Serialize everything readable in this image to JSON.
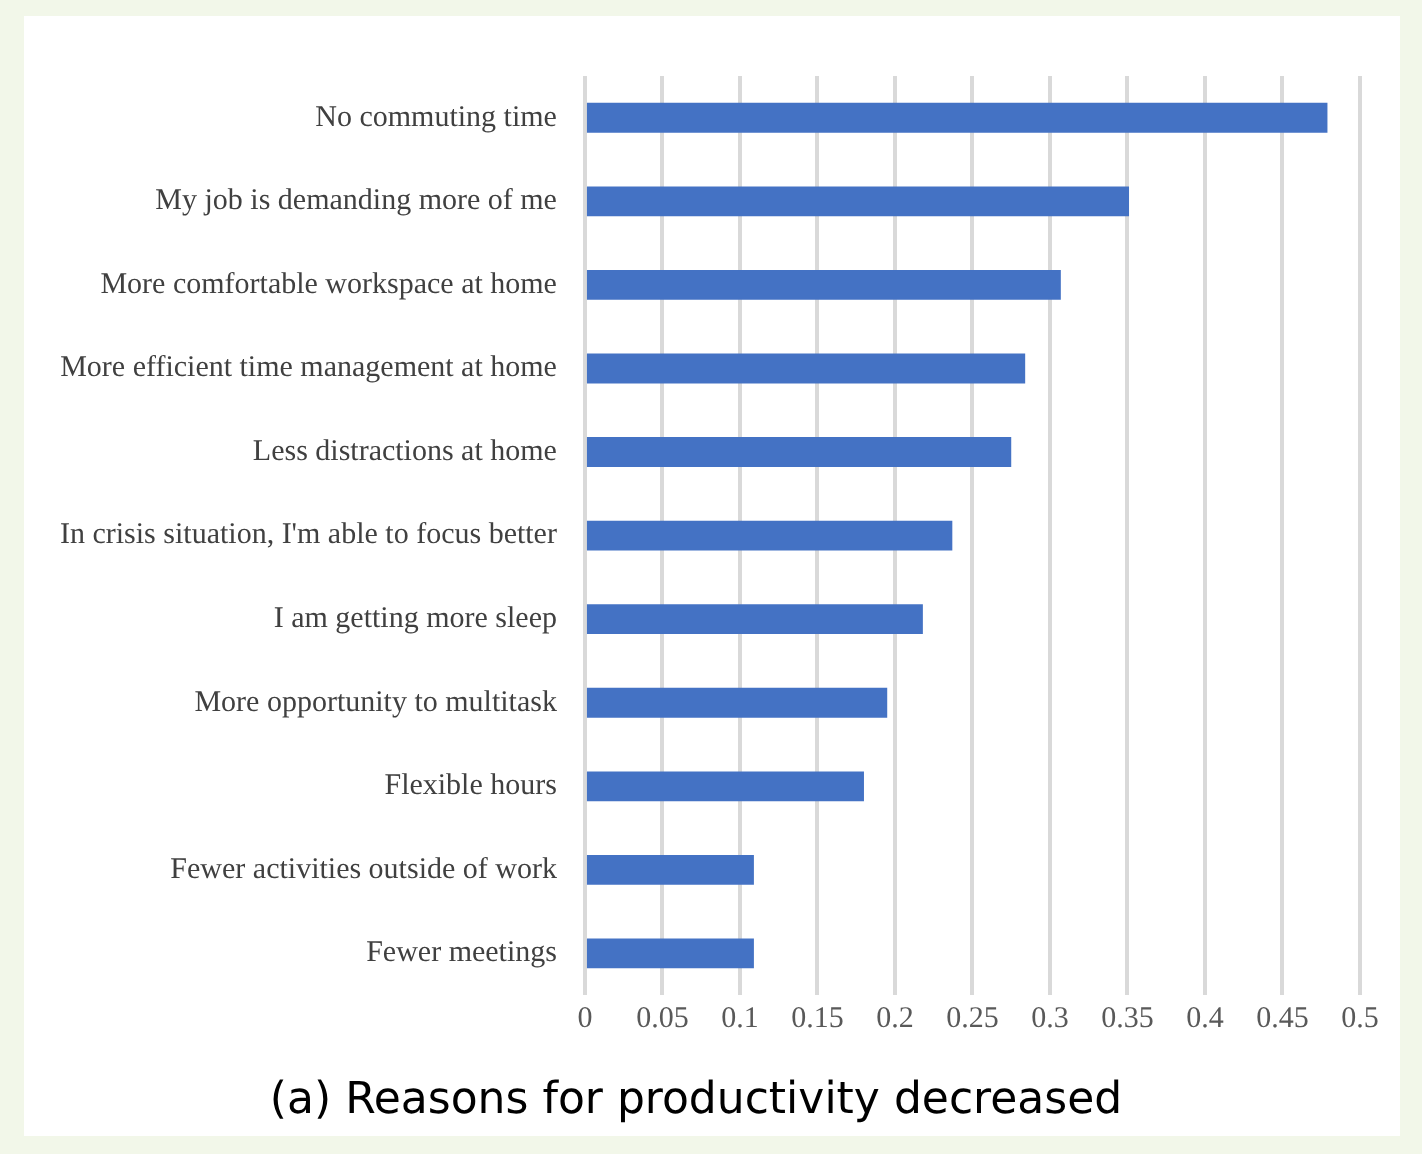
{
  "chart_data": {
    "type": "bar",
    "orientation": "horizontal",
    "title": "(a) Reasons for productivity decreased",
    "categories": [
      "No commuting time",
      "My job is demanding more of me",
      "More comfortable workspace at home",
      "More efficient time management at home",
      "Less distractions at home",
      "In crisis situation, I'm able to focus better",
      "I am getting more sleep",
      "More opportunity to multitask",
      "Flexible hours",
      "Fewer activities outside of work",
      "Fewer meetings"
    ],
    "values": [
      0.479,
      0.351,
      0.307,
      0.284,
      0.275,
      0.237,
      0.218,
      0.195,
      0.18,
      0.109,
      0.109
    ],
    "color": "#4472c4",
    "xlim": [
      0,
      0.5
    ],
    "xticks": [
      0,
      0.05,
      0.1,
      0.15,
      0.2,
      0.25,
      0.3,
      0.35,
      0.4,
      0.45,
      0.5
    ],
    "grid": "x",
    "legend": false
  }
}
